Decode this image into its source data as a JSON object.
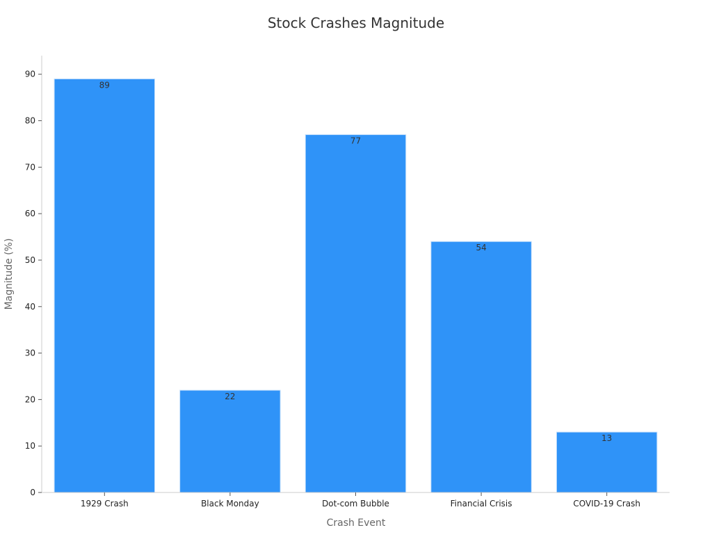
{
  "chart_data": {
    "type": "bar",
    "title": "Stock Crashes Magnitude",
    "xlabel": "Crash Event",
    "ylabel": "Magnitude (%)",
    "categories": [
      "1929 Crash",
      "Black Monday",
      "Dot-com Bubble",
      "Financial Crisis",
      "COVID-19 Crash"
    ],
    "values": [
      89,
      22,
      77,
      54,
      13
    ],
    "ylim": [
      0,
      94
    ],
    "yticks": [
      0,
      10,
      20,
      30,
      40,
      50,
      60,
      70,
      80,
      90
    ],
    "grid": false,
    "legend": "none",
    "colors": {
      "bar": "#2f93f8",
      "bar_edge": "#c7e0fb",
      "axis": "#cccccc",
      "label": "#333333"
    }
  }
}
